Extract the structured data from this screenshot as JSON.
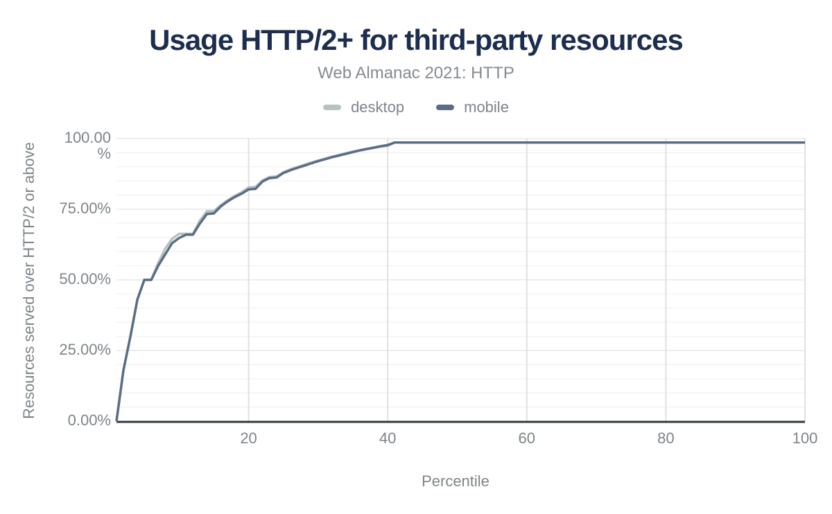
{
  "header": {
    "title": "Usage HTTP/2+ for third-party resources",
    "subtitle": "Web Almanac 2021: HTTP"
  },
  "legend": [
    {
      "label": "desktop",
      "color": "#b7c3bd"
    },
    {
      "label": "mobile",
      "color": "#5b6c86"
    }
  ],
  "axes": {
    "x_title": "Percentile",
    "y_title": "Resources served over HTTP/2 or above"
  },
  "colors": {
    "title": "#1c2d4f",
    "subtitle": "#868b90",
    "tick_text": "#7d8488",
    "axis_line": "#30363e",
    "grid_vertical": "#e0e0e4",
    "grid_minor": "#f3f3f5",
    "grid_major": "#e8e9ec",
    "desktop_line": "#b7c3bd",
    "mobile_line": "#5b6c86"
  },
  "chart_data": {
    "type": "line",
    "title": "Usage HTTP/2+ for third-party resources",
    "subtitle": "Web Almanac 2021: HTTP",
    "xlabel": "Percentile",
    "ylabel": "Resources served over HTTP/2 or above",
    "xlim": [
      1,
      100
    ],
    "ylim": [
      0,
      100
    ],
    "grid": "on",
    "legend_position": "top-center",
    "x_ticks": [
      20,
      40,
      60,
      80,
      100
    ],
    "y_ticks": [
      {
        "value": 0,
        "lines": [
          "0.00%"
        ]
      },
      {
        "value": 25,
        "lines": [
          "25.00%"
        ]
      },
      {
        "value": 50,
        "lines": [
          "50.00%"
        ]
      },
      {
        "value": 75,
        "lines": [
          "75.00%"
        ]
      },
      {
        "value": 100,
        "lines": [
          "100.00",
          "%"
        ]
      }
    ],
    "x": [
      1,
      2,
      3,
      4,
      5,
      6,
      7,
      8,
      9,
      10,
      11,
      12,
      13,
      14,
      15,
      16,
      17,
      18,
      19,
      20,
      21,
      22,
      23,
      24,
      25,
      26,
      27,
      28,
      29,
      30,
      31,
      32,
      33,
      34,
      35,
      36,
      37,
      38,
      39,
      40,
      41,
      42,
      43,
      44,
      45,
      46,
      47,
      48,
      49,
      50,
      51,
      52,
      53,
      54,
      55,
      56,
      57,
      58,
      59,
      60,
      61,
      62,
      63,
      64,
      65,
      66,
      67,
      68,
      69,
      70,
      71,
      72,
      73,
      74,
      75,
      76,
      77,
      78,
      79,
      80,
      81,
      82,
      83,
      84,
      85,
      86,
      87,
      88,
      89,
      90,
      91,
      92,
      93,
      94,
      95,
      96,
      97,
      98,
      99,
      100
    ],
    "series": [
      {
        "name": "desktop",
        "color": "#b7c3bd",
        "values": [
          0,
          18,
          30,
          43,
          50,
          50,
          56,
          61,
          64.5,
          66.3,
          66.3,
          66.3,
          71,
          74.3,
          74.3,
          76.5,
          78.2,
          79.7,
          81,
          82.7,
          82.9,
          85.2,
          86.4,
          86.6,
          88.1,
          89.1,
          89.9,
          90.7,
          91.5,
          92.2,
          92.9,
          93.6,
          94.2,
          94.8,
          95.4,
          95.9,
          96.4,
          96.7,
          97.1,
          97.4,
          98.6,
          98.6,
          98.6,
          98.6,
          98.6,
          98.6,
          98.6,
          98.6,
          98.6,
          98.6,
          98.6,
          98.6,
          98.6,
          98.6,
          98.6,
          98.6,
          98.6,
          98.6,
          98.6,
          98.6,
          98.6,
          98.6,
          98.6,
          98.6,
          98.6,
          98.6,
          98.6,
          98.6,
          98.6,
          98.6,
          98.6,
          98.6,
          98.6,
          98.6,
          98.6,
          98.6,
          98.6,
          98.6,
          98.6,
          98.6,
          98.6,
          98.6,
          98.6,
          98.6,
          98.6,
          98.6,
          98.6,
          98.6,
          98.6,
          98.6,
          98.6,
          98.6,
          98.6,
          98.6,
          98.6,
          98.6,
          98.6,
          98.6,
          98.6,
          98.6
        ]
      },
      {
        "name": "mobile",
        "color": "#5b6c86",
        "values": [
          0,
          18,
          30,
          43,
          50,
          50,
          55,
          59,
          63,
          64.8,
          66,
          66,
          70,
          73.3,
          73.5,
          76,
          77.8,
          79.3,
          80.5,
          82,
          82.2,
          84.8,
          86,
          86.2,
          87.8,
          88.8,
          89.6,
          90.4,
          91.2,
          92,
          92.7,
          93.4,
          94,
          94.6,
          95.2,
          95.8,
          96.3,
          96.8,
          97.3,
          97.7,
          98.6,
          98.6,
          98.6,
          98.6,
          98.6,
          98.6,
          98.6,
          98.6,
          98.6,
          98.6,
          98.6,
          98.6,
          98.6,
          98.6,
          98.6,
          98.6,
          98.6,
          98.6,
          98.6,
          98.6,
          98.6,
          98.6,
          98.6,
          98.6,
          98.6,
          98.6,
          98.6,
          98.6,
          98.6,
          98.6,
          98.6,
          98.6,
          98.6,
          98.6,
          98.6,
          98.6,
          98.6,
          98.6,
          98.6,
          98.6,
          98.6,
          98.6,
          98.6,
          98.6,
          98.6,
          98.6,
          98.6,
          98.6,
          98.6,
          98.6,
          98.6,
          98.6,
          98.6,
          98.6,
          98.6,
          98.6,
          98.6,
          98.6,
          98.6,
          98.6
        ]
      }
    ]
  }
}
